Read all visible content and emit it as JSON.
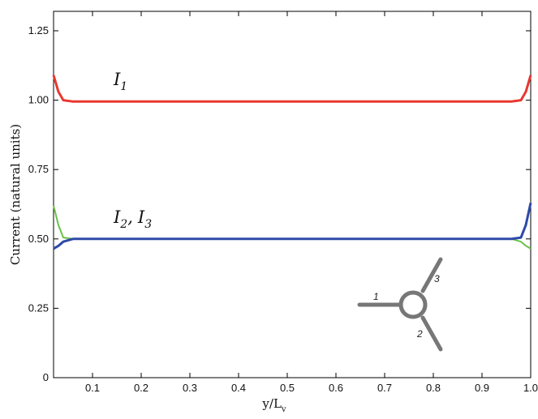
{
  "chart_data": {
    "type": "line",
    "xlabel": "y/L",
    "xlabel_sub": "v",
    "ylabel": "Current (natural units)",
    "xlim": [
      0.02,
      1.0
    ],
    "ylim": [
      0,
      1.32
    ],
    "x_ticks": [
      "0.1",
      "0.2",
      "0.3",
      "0.4",
      "0.5",
      "0.6",
      "0.7",
      "0.8",
      "0.9",
      "1.0"
    ],
    "y_ticks": [
      "0",
      "0.25",
      "0.50",
      "0.75",
      "1.00",
      "1.25"
    ],
    "grid": false,
    "series": [
      {
        "color": "#e8382f",
        "x": [
          0.02,
          0.03,
          0.04,
          0.06,
          0.5,
          0.96,
          0.98,
          0.99,
          1.0
        ],
        "y": [
          1.09,
          1.03,
          1.0,
          0.995,
          0.995,
          0.995,
          1.0,
          1.03,
          1.09
        ]
      },
      {
        "color": "#6cc04a",
        "x": [
          0.02,
          0.03,
          0.04,
          0.06,
          0.5,
          0.96,
          0.98,
          0.99,
          1.0
        ],
        "y": [
          0.62,
          0.55,
          0.505,
          0.5,
          0.5,
          0.5,
          0.49,
          0.475,
          0.465
        ]
      },
      {
        "color": "#2e4aa8",
        "x": [
          0.02,
          0.03,
          0.04,
          0.06,
          0.5,
          0.96,
          0.98,
          0.99,
          1.0
        ],
        "y": [
          0.465,
          0.475,
          0.49,
          0.5,
          0.5,
          0.5,
          0.505,
          0.55,
          0.63
        ]
      }
    ],
    "annotations": {
      "i1": {
        "main": "I",
        "sub": "1"
      },
      "i23": {
        "main_a": "I",
        "sub_a": "2",
        "sep": ",",
        "main_b": "I",
        "sub_b": "3"
      }
    },
    "inset": {
      "description_labels": [
        "1",
        "2",
        "3"
      ]
    }
  },
  "colors": {
    "axis": "#000000",
    "inset": "#777777"
  }
}
